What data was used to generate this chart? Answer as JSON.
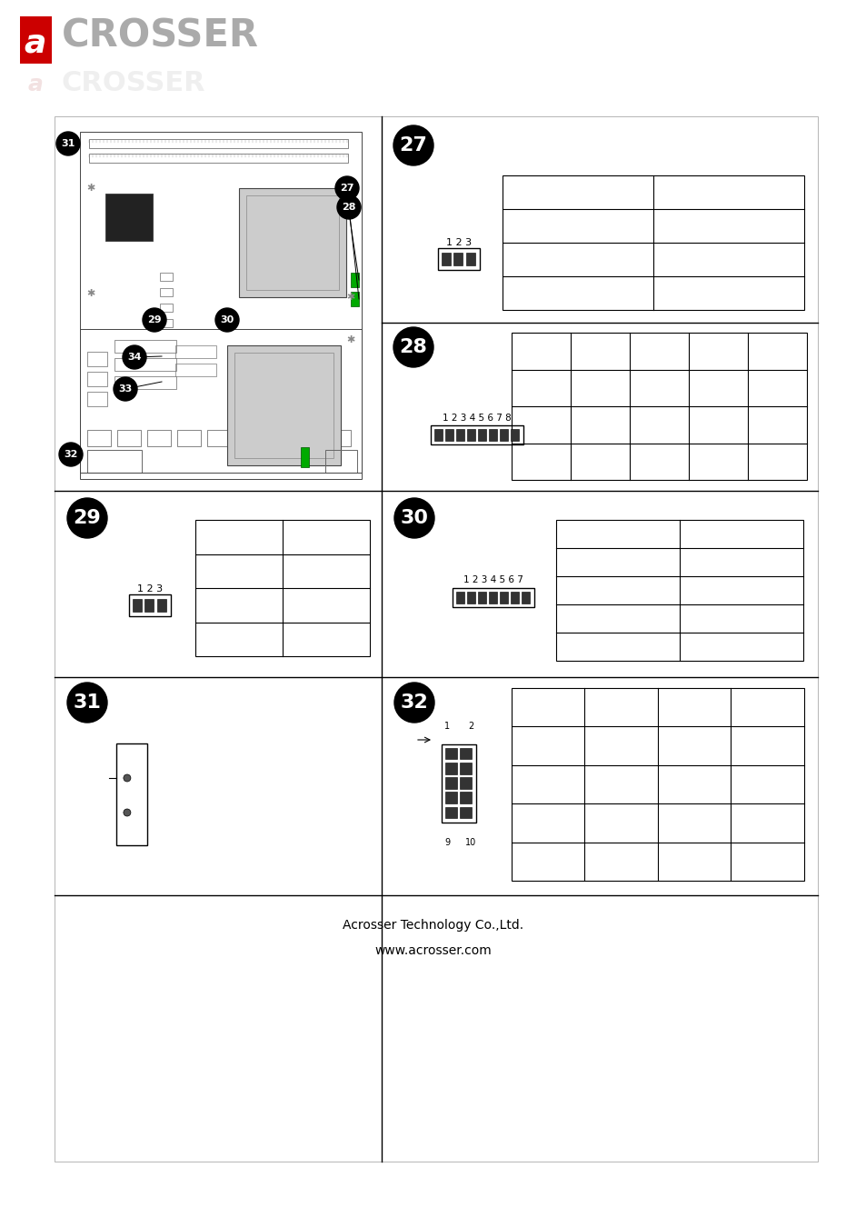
{
  "bg_color": "#ffffff",
  "border_color": "#000000",
  "title": "Acrosser Technology Co.,Ltd.",
  "website": "www.acrosser.com",
  "badge_color": "#000000",
  "badge_text_color": "#ffffff",
  "green_color": "#00aa00",
  "dark_chip": "#333333",
  "pcb_fill": "#dddddd",
  "pcb_edge": "#555555",
  "sections": {
    "27": {
      "label": "27",
      "table_rows": 4,
      "table_cols": 2,
      "connector_pins": 3,
      "connector_label": "1 2 3"
    },
    "28": {
      "label": "28",
      "table_rows": 4,
      "table_cols": 5,
      "connector_pins": 8,
      "connector_label": "1 2 3 4 5 6 7 8"
    },
    "29": {
      "label": "29",
      "table_rows": 4,
      "table_cols": 2,
      "connector_pins": 3,
      "connector_label": "1 2 3"
    },
    "30": {
      "label": "30",
      "table_rows": 5,
      "table_cols": 2,
      "connector_pins": 7,
      "connector_label": "1 2 3 4 5 6 7"
    },
    "31": {
      "label": "31",
      "table_rows": 0,
      "table_cols": 0,
      "connector_pins": 0,
      "connector_label": ""
    },
    "32": {
      "label": "32",
      "table_rows": 5,
      "table_cols": 4,
      "connector_pins": 10,
      "connector_label": ""
    }
  }
}
